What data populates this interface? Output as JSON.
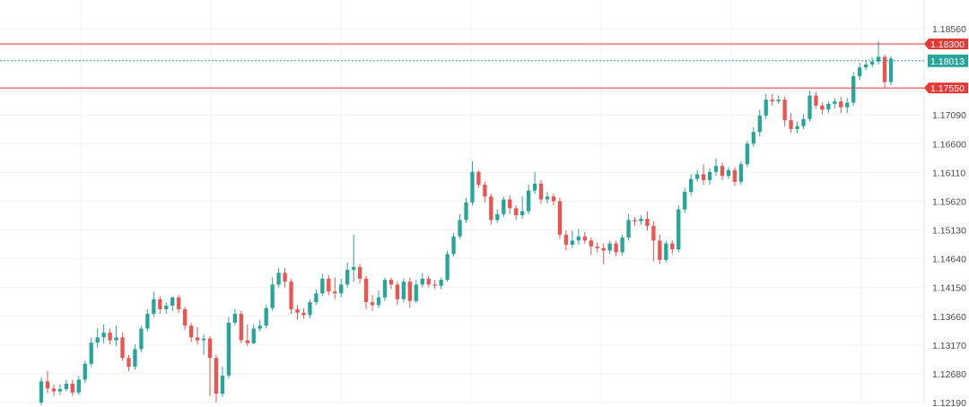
{
  "chart_data": {
    "type": "candlestick",
    "title": "",
    "colors": {
      "up": "#26a69a",
      "down": "#ef5350",
      "level_line": "#e53935",
      "current_line": "#26a69a",
      "grid": "#f1f1f1"
    },
    "y_axis": {
      "ticks": [
        "1.18560",
        "1.17090",
        "1.16600",
        "1.16110",
        "1.15620",
        "1.15130",
        "1.14640",
        "1.14150",
        "1.13660",
        "1.13170",
        "1.12680",
        "1.12190"
      ],
      "ylim": [
        1.1219,
        1.1885
      ]
    },
    "levels": [
      {
        "value": 1.183,
        "label": "1.18300",
        "kind": "resistance"
      },
      {
        "value": 1.1755,
        "label": "1.17550",
        "kind": "support"
      }
    ],
    "current_price": {
      "value": 1.18013,
      "label": "1.18013"
    },
    "candles": [
      [
        1.1219,
        1.1255,
        1.1215,
        1.1262
      ],
      [
        1.1255,
        1.1243,
        1.1235,
        1.1273
      ],
      [
        1.1243,
        1.1238,
        1.123,
        1.125
      ],
      [
        1.1238,
        1.1242,
        1.1232,
        1.125
      ],
      [
        1.1242,
        1.1251,
        1.1238,
        1.1258
      ],
      [
        1.1251,
        1.1236,
        1.123,
        1.1258
      ],
      [
        1.1236,
        1.1258,
        1.1232,
        1.1264
      ],
      [
        1.1258,
        1.1285,
        1.1252,
        1.129
      ],
      [
        1.1285,
        1.1321,
        1.128,
        1.133
      ],
      [
        1.1321,
        1.133,
        1.1312,
        1.1346
      ],
      [
        1.133,
        1.1338,
        1.132,
        1.1352
      ],
      [
        1.1338,
        1.1325,
        1.1318,
        1.1345
      ],
      [
        1.1325,
        1.133,
        1.1315,
        1.135
      ],
      [
        1.133,
        1.1295,
        1.129,
        1.1338
      ],
      [
        1.1295,
        1.128,
        1.1272,
        1.13
      ],
      [
        1.128,
        1.131,
        1.1275,
        1.1318
      ],
      [
        1.131,
        1.1345,
        1.1305,
        1.135
      ],
      [
        1.1345,
        1.137,
        1.134,
        1.1378
      ],
      [
        1.137,
        1.1395,
        1.1365,
        1.1408
      ],
      [
        1.1395,
        1.1378,
        1.137,
        1.14
      ],
      [
        1.1378,
        1.1384,
        1.137,
        1.139
      ],
      [
        1.1384,
        1.1398,
        1.1375,
        1.14
      ],
      [
        1.1398,
        1.1378,
        1.1372,
        1.1402
      ],
      [
        1.1378,
        1.135,
        1.1342,
        1.1382
      ],
      [
        1.135,
        1.133,
        1.1322,
        1.1355
      ],
      [
        1.133,
        1.1325,
        1.1318,
        1.1348
      ],
      [
        1.1325,
        1.1328,
        1.13,
        1.1335
      ],
      [
        1.1328,
        1.1295,
        1.123,
        1.1332
      ],
      [
        1.1295,
        1.1234,
        1.1219,
        1.13
      ],
      [
        1.1234,
        1.1265,
        1.1228,
        1.128
      ],
      [
        1.1265,
        1.1355,
        1.126,
        1.1365
      ],
      [
        1.1355,
        1.137,
        1.135,
        1.1378
      ],
      [
        1.137,
        1.1325,
        1.132,
        1.1375
      ],
      [
        1.1325,
        1.132,
        1.1315,
        1.1352
      ],
      [
        1.132,
        1.1345,
        1.1318,
        1.1352
      ],
      [
        1.1345,
        1.135,
        1.134,
        1.136
      ],
      [
        1.135,
        1.138,
        1.1345,
        1.1385
      ],
      [
        1.138,
        1.142,
        1.1375,
        1.1432
      ],
      [
        1.142,
        1.144,
        1.1415,
        1.1448
      ],
      [
        1.144,
        1.1425,
        1.1415,
        1.1448
      ],
      [
        1.1425,
        1.1378,
        1.137,
        1.143
      ],
      [
        1.1378,
        1.1372,
        1.136,
        1.1385
      ],
      [
        1.1372,
        1.1368,
        1.1362,
        1.138
      ],
      [
        1.1368,
        1.139,
        1.1362,
        1.1395
      ],
      [
        1.139,
        1.1405,
        1.1385,
        1.1412
      ],
      [
        1.1405,
        1.143,
        1.14,
        1.1438
      ],
      [
        1.143,
        1.1408,
        1.1402,
        1.1436
      ],
      [
        1.1408,
        1.1405,
        1.1395,
        1.1432
      ],
      [
        1.1405,
        1.142,
        1.1398,
        1.143
      ],
      [
        1.142,
        1.1445,
        1.1415,
        1.1458
      ],
      [
        1.1445,
        1.145,
        1.1425,
        1.1505
      ],
      [
        1.145,
        1.143,
        1.1422,
        1.1455
      ],
      [
        1.143,
        1.139,
        1.1378,
        1.1435
      ],
      [
        1.139,
        1.1385,
        1.1375,
        1.1402
      ],
      [
        1.1385,
        1.1398,
        1.138,
        1.141
      ],
      [
        1.1398,
        1.1428,
        1.1392,
        1.1432
      ],
      [
        1.1428,
        1.142,
        1.1412,
        1.1432
      ],
      [
        1.142,
        1.1395,
        1.1385,
        1.1425
      ],
      [
        1.1395,
        1.1425,
        1.139,
        1.143
      ],
      [
        1.1425,
        1.1392,
        1.138,
        1.1432
      ],
      [
        1.1392,
        1.142,
        1.1388,
        1.1428
      ],
      [
        1.142,
        1.143,
        1.1415,
        1.144
      ],
      [
        1.143,
        1.142,
        1.1415,
        1.1435
      ],
      [
        1.142,
        1.1418,
        1.1412,
        1.1428
      ],
      [
        1.1418,
        1.1428,
        1.1412,
        1.1432
      ],
      [
        1.1428,
        1.1472,
        1.1425,
        1.1478
      ],
      [
        1.1472,
        1.1502,
        1.1468,
        1.1508
      ],
      [
        1.1502,
        1.153,
        1.1498,
        1.154
      ],
      [
        1.153,
        1.156,
        1.1525,
        1.1568
      ],
      [
        1.156,
        1.1612,
        1.1555,
        1.163
      ],
      [
        1.1612,
        1.159,
        1.1585,
        1.1615
      ],
      [
        1.159,
        1.157,
        1.156,
        1.1595
      ],
      [
        1.157,
        1.153,
        1.1522,
        1.1575
      ],
      [
        1.153,
        1.154,
        1.1525,
        1.1548
      ],
      [
        1.154,
        1.1565,
        1.1535,
        1.157
      ],
      [
        1.1565,
        1.155,
        1.154,
        1.1572
      ],
      [
        1.155,
        1.1538,
        1.153,
        1.1555
      ],
      [
        1.1538,
        1.1545,
        1.1532,
        1.157
      ],
      [
        1.1545,
        1.158,
        1.154,
        1.159
      ],
      [
        1.158,
        1.1592,
        1.1575,
        1.1612
      ],
      [
        1.1592,
        1.1565,
        1.1558,
        1.1598
      ],
      [
        1.1565,
        1.157,
        1.1558,
        1.1578
      ],
      [
        1.157,
        1.1562,
        1.1555,
        1.1575
      ],
      [
        1.1562,
        1.1505,
        1.1498,
        1.1568
      ],
      [
        1.1505,
        1.1488,
        1.1478,
        1.1512
      ],
      [
        1.1488,
        1.1495,
        1.1482,
        1.1512
      ],
      [
        1.1495,
        1.1502,
        1.1488,
        1.1515
      ],
      [
        1.1502,
        1.1495,
        1.149,
        1.151
      ],
      [
        1.1495,
        1.1485,
        1.147,
        1.15
      ],
      [
        1.1485,
        1.1482,
        1.1475,
        1.1492
      ],
      [
        1.1482,
        1.1478,
        1.1455,
        1.149
      ],
      [
        1.1478,
        1.149,
        1.1472,
        1.1495
      ],
      [
        1.149,
        1.1475,
        1.1468,
        1.1495
      ],
      [
        1.1475,
        1.15,
        1.147,
        1.1505
      ],
      [
        1.15,
        1.153,
        1.1495,
        1.154
      ],
      [
        1.153,
        1.1528,
        1.152,
        1.1535
      ],
      [
        1.1528,
        1.1532,
        1.1522,
        1.1538
      ],
      [
        1.1532,
        1.152,
        1.1512,
        1.1545
      ],
      [
        1.152,
        1.1495,
        1.146,
        1.1528
      ],
      [
        1.1495,
        1.1462,
        1.1455,
        1.1505
      ],
      [
        1.1462,
        1.149,
        1.1458,
        1.1495
      ],
      [
        1.149,
        1.148,
        1.1472,
        1.1495
      ],
      [
        1.148,
        1.1548,
        1.1475,
        1.1555
      ],
      [
        1.1548,
        1.1578,
        1.1542,
        1.1585
      ],
      [
        1.1578,
        1.16,
        1.1572,
        1.1608
      ],
      [
        1.16,
        1.1608,
        1.1595,
        1.1615
      ],
      [
        1.1608,
        1.1598,
        1.159,
        1.1625
      ],
      [
        1.1598,
        1.1612,
        1.159,
        1.1618
      ],
      [
        1.1612,
        1.1622,
        1.1605,
        1.1635
      ],
      [
        1.1622,
        1.1605,
        1.1598,
        1.1628
      ],
      [
        1.1605,
        1.1615,
        1.16,
        1.162
      ],
      [
        1.1615,
        1.1595,
        1.1588,
        1.162
      ],
      [
        1.1595,
        1.1625,
        1.159,
        1.163
      ],
      [
        1.1625,
        1.166,
        1.162,
        1.1665
      ],
      [
        1.166,
        1.168,
        1.1655,
        1.1688
      ],
      [
        1.168,
        1.1708,
        1.1672,
        1.1718
      ],
      [
        1.1708,
        1.1735,
        1.1702,
        1.1745
      ],
      [
        1.1735,
        1.1732,
        1.1725,
        1.1745
      ],
      [
        1.1732,
        1.1735,
        1.1728,
        1.1742
      ],
      [
        1.1735,
        1.17,
        1.169,
        1.174
      ],
      [
        1.17,
        1.1685,
        1.1678,
        1.1712
      ],
      [
        1.1685,
        1.169,
        1.1678,
        1.1698
      ],
      [
        1.169,
        1.1702,
        1.1685,
        1.171
      ],
      [
        1.1702,
        1.1742,
        1.1698,
        1.175
      ],
      [
        1.1742,
        1.1725,
        1.172,
        1.1748
      ],
      [
        1.1725,
        1.1718,
        1.171,
        1.173
      ],
      [
        1.1718,
        1.1728,
        1.1712,
        1.1732
      ],
      [
        1.1728,
        1.1732,
        1.172,
        1.1738
      ],
      [
        1.1732,
        1.1722,
        1.1712,
        1.174
      ],
      [
        1.1722,
        1.173,
        1.1712,
        1.1738
      ],
      [
        1.173,
        1.1775,
        1.1725,
        1.1782
      ],
      [
        1.1775,
        1.179,
        1.1768,
        1.1798
      ],
      [
        1.179,
        1.1795,
        1.1785,
        1.1802
      ],
      [
        1.1795,
        1.18,
        1.179,
        1.1808
      ],
      [
        1.18,
        1.1808,
        1.1795,
        1.1835
      ],
      [
        1.1808,
        1.1765,
        1.1755,
        1.1812
      ],
      [
        1.1765,
        1.1805,
        1.176,
        1.1809
      ]
    ]
  }
}
